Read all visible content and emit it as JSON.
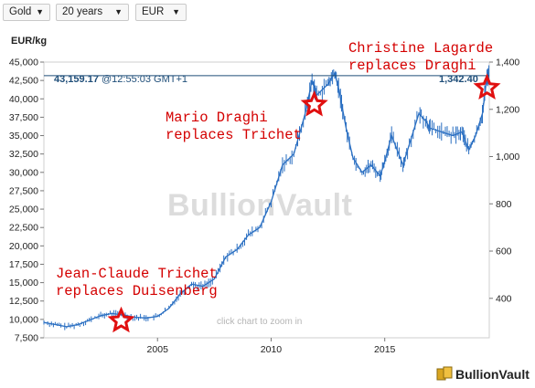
{
  "controls": {
    "metal": "Gold",
    "range": "20 years",
    "currency": "EUR"
  },
  "chart_data": {
    "type": "line",
    "ylabel_left": "EUR/kg",
    "ylim_left": [
      7500,
      45000
    ],
    "y_ticks_left": [
      "7,500",
      "10,000",
      "12,500",
      "15,000",
      "17,500",
      "20,000",
      "22,500",
      "25,000",
      "27,500",
      "30,000",
      "32,500",
      "35,000",
      "37,500",
      "40,000",
      "42,500",
      "45,000"
    ],
    "ylim_right": [
      233,
      1400
    ],
    "y_ticks_right": [
      "400",
      "600",
      "800",
      "1,000",
      "1,200",
      "1,400"
    ],
    "xlim": [
      2000.0,
      2019.6
    ],
    "x_ticks": [
      "2005",
      "2010",
      "2015"
    ],
    "series_color": "#2a6fc2",
    "current_line": {
      "value_eur_kg": 43159.17,
      "label_left": "43,159.17",
      "time": "@12:55:03 GMT+1",
      "label_right": "1,342.40"
    },
    "series": [
      {
        "values": [
          [
            2000.0,
            9600
          ],
          [
            2000.5,
            9300
          ],
          [
            2001.0,
            9000
          ],
          [
            2001.5,
            9300
          ],
          [
            2002.0,
            9900
          ],
          [
            2002.5,
            10500
          ],
          [
            2003.0,
            10800
          ],
          [
            2003.5,
            10600
          ],
          [
            2004.0,
            10300
          ],
          [
            2004.5,
            10200
          ],
          [
            2005.0,
            10400
          ],
          [
            2005.5,
            11500
          ],
          [
            2006.0,
            13500
          ],
          [
            2006.5,
            14800
          ],
          [
            2007.0,
            14500
          ],
          [
            2007.5,
            15500
          ],
          [
            2008.0,
            18500
          ],
          [
            2008.5,
            19500
          ],
          [
            2009.0,
            21500
          ],
          [
            2009.5,
            22500
          ],
          [
            2010.0,
            26000
          ],
          [
            2010.5,
            31000
          ],
          [
            2011.0,
            32500
          ],
          [
            2011.5,
            38000
          ],
          [
            2011.8,
            42500
          ],
          [
            2012.0,
            40500
          ],
          [
            2012.5,
            42000
          ],
          [
            2012.8,
            43500
          ],
          [
            2013.0,
            41000
          ],
          [
            2013.3,
            36000
          ],
          [
            2013.6,
            32000
          ],
          [
            2014.0,
            30000
          ],
          [
            2014.4,
            31000
          ],
          [
            2014.8,
            29500
          ],
          [
            2015.0,
            31500
          ],
          [
            2015.3,
            35000
          ],
          [
            2015.8,
            31000
          ],
          [
            2016.0,
            33000
          ],
          [
            2016.5,
            38000
          ],
          [
            2016.8,
            37000
          ],
          [
            2017.0,
            36000
          ],
          [
            2017.5,
            35500
          ],
          [
            2018.0,
            35000
          ],
          [
            2018.4,
            35500
          ],
          [
            2018.7,
            33000
          ],
          [
            2019.0,
            35000
          ],
          [
            2019.3,
            38000
          ],
          [
            2019.5,
            43000
          ],
          [
            2019.6,
            43200
          ]
        ]
      }
    ],
    "annotations": [
      {
        "id": "lagarde",
        "text": "Christine Lagarde\nreplaces Draghi",
        "x": 2019.5,
        "y": 41500
      },
      {
        "id": "draghi",
        "text": "Mario Draghi\nreplaces Trichet",
        "x": 2011.9,
        "y": 39200
      },
      {
        "id": "trichet",
        "text": "Jean-Claude Trichet\nreplaces Duisenberg",
        "x": 2003.4,
        "y": 9800
      }
    ]
  },
  "watermark": "BullionVault",
  "zoom_hint": "click chart to zoom in",
  "logo": {
    "text": "BullionVault",
    "icon": "gold-bars-icon"
  }
}
